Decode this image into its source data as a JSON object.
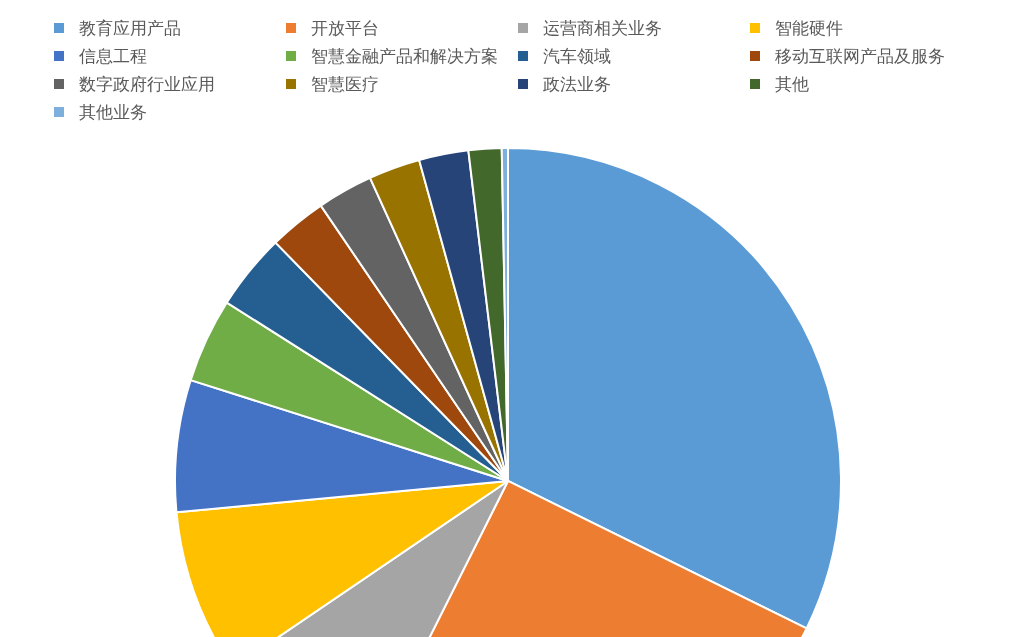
{
  "chart_data": {
    "type": "pie",
    "categories": [
      "教育应用产品",
      "开放平台",
      "运营商相关业务",
      "智能硬件",
      "信息工程",
      "智慧金融产品和解决方案",
      "汽车领域",
      "移动互联网产品及服务",
      "数字政府行业应用",
      "智慧医疗",
      "政法业务",
      "其他",
      "其他业务"
    ],
    "values": [
      32.3,
      25.1,
      8.1,
      8.0,
      6.4,
      4.1,
      3.7,
      2.8,
      2.7,
      2.5,
      2.4,
      1.6,
      0.3
    ],
    "colors": [
      "#5b9bd5",
      "#ed7d31",
      "#a5a5a5",
      "#ffc000",
      "#4472c4",
      "#70ad47",
      "#255e91",
      "#9e480e",
      "#636363",
      "#997300",
      "#264478",
      "#43682b",
      "#7cafdd"
    ],
    "legend": "top"
  }
}
